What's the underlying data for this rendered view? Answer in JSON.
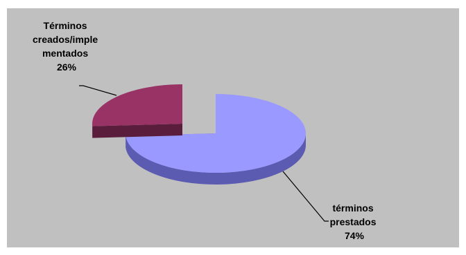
{
  "chart_data": {
    "type": "pie",
    "style": "3d-exploded",
    "title": "",
    "slices": [
      {
        "label_lines": [
          "términos",
          "prestados"
        ],
        "percent_label": "74%",
        "value": 74,
        "color": "#9999ff",
        "side_color": "#5b5bb2"
      },
      {
        "label_lines": [
          "Términos",
          "creados/imple",
          "mentados"
        ],
        "percent_label": "26%",
        "value": 26,
        "color": "#993366",
        "side_color": "#5a1e3c"
      }
    ],
    "background": "#c0c0c0",
    "legend": "none"
  }
}
